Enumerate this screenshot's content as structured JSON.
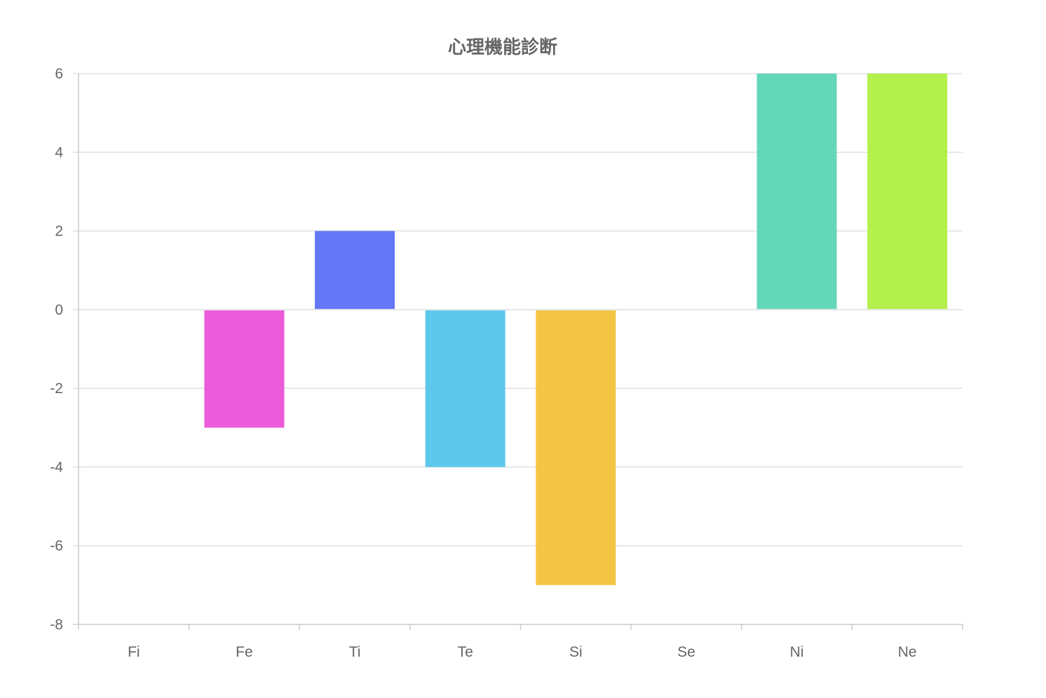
{
  "chart_data": {
    "type": "bar",
    "title": "心理機能診断",
    "categories": [
      "Fi",
      "Fe",
      "Ti",
      "Te",
      "Si",
      "Se",
      "Ni",
      "Ne"
    ],
    "values": [
      0,
      -3,
      2,
      -4,
      -7,
      0,
      6,
      6
    ],
    "colors": [
      "#EB5BDA",
      "#EB5BDA",
      "#6477F6",
      "#5DC8EC",
      "#F4C545",
      "#F4C545",
      "#65D7B9",
      "#B3F04C"
    ],
    "ylim": [
      -8,
      6
    ],
    "yticks": [
      6,
      4,
      2,
      0,
      -2,
      -4,
      -6,
      -8
    ],
    "grid": true,
    "legend": "none",
    "xlabel": "",
    "ylabel": ""
  }
}
